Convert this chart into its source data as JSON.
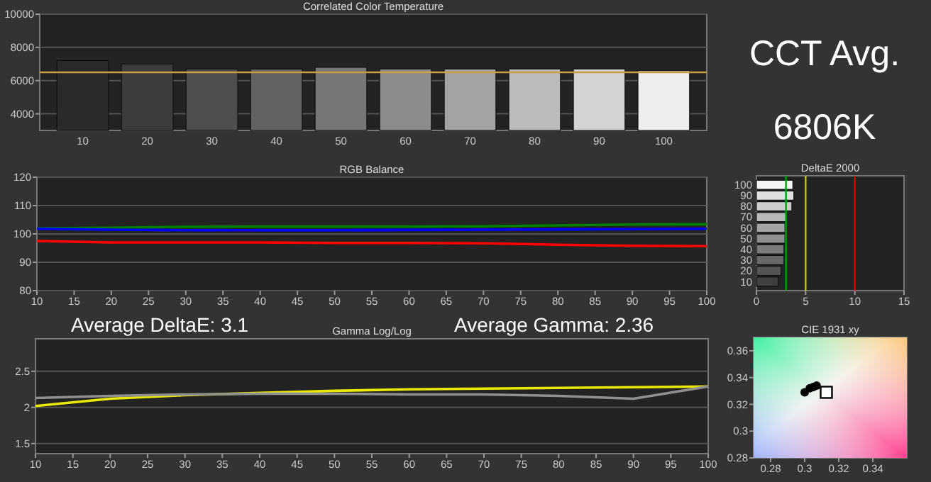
{
  "chart_data": [
    {
      "type": "bar",
      "title": "Correlated Color Temperature",
      "categories": [
        "10",
        "20",
        "30",
        "40",
        "50",
        "60",
        "70",
        "80",
        "90",
        "100"
      ],
      "values": [
        7200,
        7000,
        6700,
        6700,
        6800,
        6700,
        6700,
        6700,
        6700,
        6600
      ],
      "colors": [
        "#2a2a2a",
        "#3c3c3c",
        "#4e4e4e",
        "#626262",
        "#777777",
        "#8c8c8c",
        "#a3a3a3",
        "#bbbbbb",
        "#d3d3d3",
        "#eeeeee"
      ],
      "ylim": [
        3000,
        10000
      ],
      "yticks": [
        4000,
        6000,
        8000,
        10000
      ],
      "grid": "y",
      "ref_lines": [
        {
          "axis": "y",
          "value": 6500,
          "color": "#c8a040"
        }
      ]
    },
    {
      "type": "line",
      "title": "RGB Balance",
      "x": [
        10,
        20,
        30,
        40,
        50,
        60,
        70,
        80,
        90,
        100
      ],
      "series": [
        {
          "color": "#ff0000",
          "values": [
            97.5,
            97,
            97,
            97,
            96.8,
            96.8,
            96.7,
            96.2,
            95.8,
            95.7
          ]
        },
        {
          "color": "#008000",
          "values": [
            102,
            102.2,
            102.5,
            102.6,
            102.6,
            102.6,
            102.7,
            103,
            103.3,
            103.4
          ]
        },
        {
          "color": "#0000ff",
          "values": [
            101.8,
            101.5,
            101.3,
            101.3,
            101.3,
            101.4,
            101.5,
            101.6,
            101.7,
            101.8
          ]
        }
      ],
      "xlim": [
        10,
        100
      ],
      "xticks": [
        10,
        15,
        20,
        25,
        30,
        35,
        40,
        45,
        50,
        55,
        60,
        65,
        70,
        75,
        80,
        85,
        90,
        95,
        100
      ],
      "ylim": [
        80,
        120
      ],
      "yticks": [
        80,
        90,
        100,
        110,
        120
      ],
      "grid": "y"
    },
    {
      "type": "line",
      "title": "Gamma Log/Log",
      "x": [
        10,
        20,
        30,
        40,
        50,
        60,
        70,
        80,
        90,
        100
      ],
      "series": [
        {
          "color": "#e8e800",
          "values": [
            2.02,
            2.12,
            2.17,
            2.2,
            2.23,
            2.25,
            2.26,
            2.27,
            2.28,
            2.29
          ]
        },
        {
          "color": "#909090",
          "values": [
            2.13,
            2.16,
            2.18,
            2.19,
            2.19,
            2.18,
            2.18,
            2.16,
            2.12,
            2.29
          ]
        }
      ],
      "xlim": [
        10,
        100
      ],
      "xticks": [
        10,
        15,
        20,
        25,
        30,
        35,
        40,
        45,
        50,
        55,
        60,
        65,
        70,
        75,
        80,
        85,
        90,
        95,
        100
      ],
      "ylim": [
        1.36,
        2.95
      ],
      "yticks": [
        1.5,
        2,
        2.5
      ],
      "grid": "y"
    },
    {
      "type": "bar",
      "orientation": "horizontal",
      "title": "DeltaE 2000",
      "categories": [
        "100",
        "90",
        "80",
        "70",
        "60",
        "50",
        "40",
        "30",
        "20",
        "10"
      ],
      "values": [
        3.7,
        3.8,
        3.6,
        3,
        2.9,
        2.9,
        2.8,
        2.8,
        2.5,
        2.2
      ],
      "colors": [
        "#f4f4f4",
        "#e0e0e0",
        "#cccccc",
        "#b8b8b8",
        "#a4a4a4",
        "#909090",
        "#7c7c7c",
        "#686868",
        "#545454",
        "#404040"
      ],
      "xlim": [
        0,
        15
      ],
      "xticks": [
        0,
        5,
        10,
        15
      ],
      "ref_lines": [
        {
          "axis": "x",
          "value": 3,
          "color": "#00a000"
        },
        {
          "axis": "x",
          "value": 5,
          "color": "#c8c800"
        },
        {
          "axis": "x",
          "value": 10,
          "color": "#e00000"
        }
      ]
    },
    {
      "type": "scatter",
      "title": "CIE 1931 xy",
      "marker": "circle",
      "series": [
        {
          "color": "#000000",
          "x": [
            0.3,
            0.303,
            0.305,
            0.307
          ],
          "values": [
            0.329,
            0.332,
            0.333,
            0.334
          ]
        },
        {
          "color": "#ffffff",
          "marker": "square",
          "x": [
            0.3127
          ],
          "values": [
            0.329
          ]
        }
      ],
      "xlim": [
        0.27,
        0.36
      ],
      "xticks": [
        0.28,
        0.3,
        0.32,
        0.34
      ],
      "ylim": [
        0.28,
        0.37
      ],
      "yticks": [
        0.28,
        0.3,
        0.32,
        0.34,
        0.36
      ]
    },
    {
      "type": "other",
      "title": "CCT Avg.",
      "annotations": [
        "6806K",
        "Average DeltaE: 3.1",
        "Average Gamma: 2.36"
      ]
    }
  ]
}
